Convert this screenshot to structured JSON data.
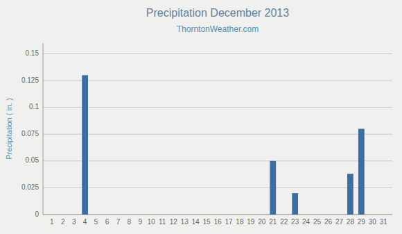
{
  "chart_data": {
    "type": "bar",
    "title": "Precipitation December 2013",
    "subtitle": "ThorntonWeather.com",
    "ylabel": "Precipitation ( in. )",
    "x": [
      1,
      2,
      3,
      4,
      5,
      6,
      7,
      8,
      9,
      10,
      11,
      12,
      13,
      14,
      15,
      16,
      17,
      18,
      19,
      20,
      21,
      22,
      23,
      24,
      25,
      26,
      27,
      28,
      29,
      30,
      31
    ],
    "values": [
      0,
      0,
      0,
      0.13,
      0,
      0,
      0,
      0,
      0,
      0,
      0,
      0,
      0,
      0,
      0,
      0,
      0,
      0,
      0,
      0,
      0.05,
      0,
      0.02,
      0,
      0,
      0,
      0,
      0.038,
      0.08,
      0,
      0
    ],
    "color": "#3a6ea5",
    "xlim": [
      0.2,
      31.8
    ],
    "xticks": [
      1,
      2,
      3,
      4,
      5,
      6,
      7,
      8,
      9,
      10,
      11,
      12,
      13,
      14,
      15,
      16,
      17,
      18,
      19,
      20,
      21,
      22,
      23,
      24,
      25,
      26,
      27,
      28,
      29,
      30,
      31
    ],
    "ylim": [
      0,
      0.16
    ],
    "yticks": [
      0,
      0.025,
      0.05,
      0.075,
      0.1,
      0.125,
      0.15
    ],
    "grid": true
  }
}
